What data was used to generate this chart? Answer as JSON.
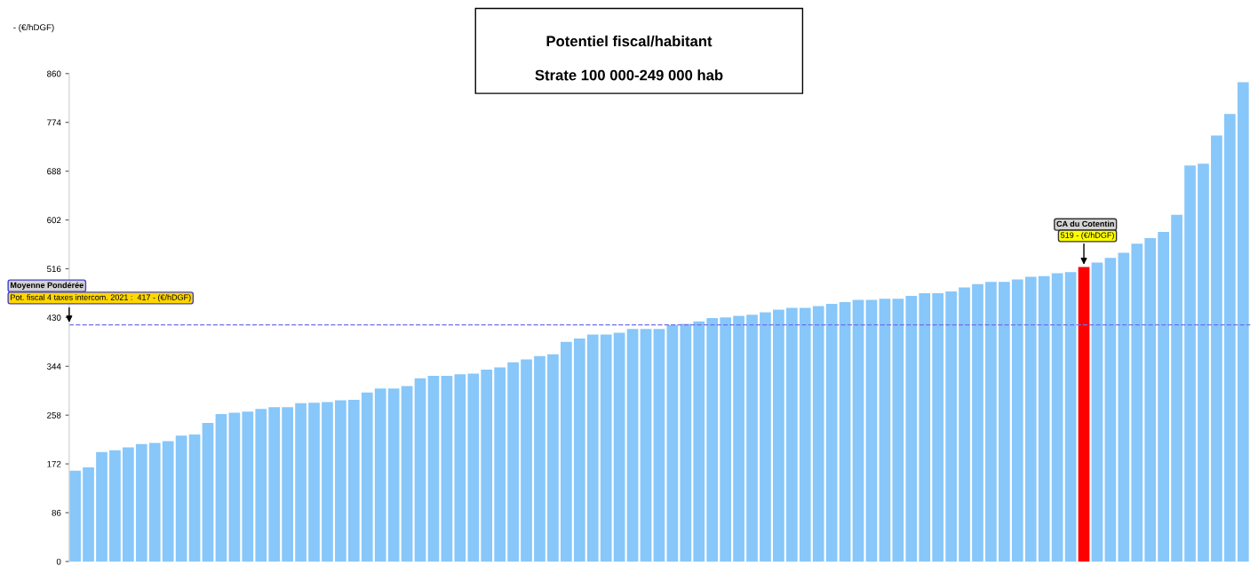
{
  "chart_data": {
    "type": "bar",
    "title": "Potentiel fiscal/habitant",
    "subtitle": "Strate 100 000-249 000 hab",
    "ylabel": "- (€/hDGF)",
    "categories": [
      null,
      null,
      null,
      null,
      null,
      null,
      null,
      null,
      null,
      null,
      null,
      null,
      null,
      null,
      null,
      null,
      null,
      null,
      null,
      null,
      null,
      null,
      null,
      null,
      null,
      null,
      null,
      null,
      null,
      null,
      null,
      null,
      null,
      null,
      null,
      null,
      null,
      null,
      null,
      null,
      null,
      null,
      null,
      null,
      null,
      null,
      null,
      null,
      null,
      null,
      null,
      null,
      null,
      null,
      null,
      null,
      null,
      null,
      null,
      null,
      null,
      null,
      null,
      null,
      null,
      null,
      null,
      null,
      null,
      null,
      null,
      null,
      null,
      null,
      null,
      null,
      null,
      null,
      null,
      null,
      null,
      null,
      null,
      null,
      null,
      null,
      null,
      null,
      null
    ],
    "values": [
      160,
      166,
      193,
      196,
      201,
      207,
      209,
      212,
      222,
      224,
      244,
      260,
      262,
      264,
      269,
      272,
      272,
      279,
      280,
      281,
      284,
      285,
      298,
      305,
      305,
      309,
      323,
      327,
      327,
      330,
      331,
      338,
      342,
      351,
      356,
      362,
      365,
      387,
      393,
      400,
      400,
      403,
      410,
      410,
      410,
      417,
      419,
      423,
      429,
      430,
      433,
      435,
      439,
      444,
      447,
      447,
      450,
      454,
      457,
      461,
      461,
      463,
      463,
      468,
      473,
      473,
      476,
      483,
      489,
      493,
      493,
      497,
      502,
      503,
      508,
      510,
      519,
      527,
      535,
      544,
      560,
      570,
      581,
      611,
      698,
      701,
      751,
      789,
      845
    ],
    "colors": [
      "#87c7fa",
      "#87c7fa",
      "#87c7fa",
      "#87c7fa",
      "#87c7fa",
      "#87c7fa",
      "#87c7fa",
      "#87c7fa",
      "#87c7fa",
      "#87c7fa",
      "#87c7fa",
      "#87c7fa",
      "#87c7fa",
      "#87c7fa",
      "#87c7fa",
      "#87c7fa",
      "#87c7fa",
      "#87c7fa",
      "#87c7fa",
      "#87c7fa",
      "#87c7fa",
      "#87c7fa",
      "#87c7fa",
      "#87c7fa",
      "#87c7fa",
      "#87c7fa",
      "#87c7fa",
      "#87c7fa",
      "#87c7fa",
      "#87c7fa",
      "#87c7fa",
      "#87c7fa",
      "#87c7fa",
      "#87c7fa",
      "#87c7fa",
      "#87c7fa",
      "#87c7fa",
      "#87c7fa",
      "#87c7fa",
      "#87c7fa",
      "#87c7fa",
      "#87c7fa",
      "#87c7fa",
      "#87c7fa",
      "#87c7fa",
      "#87c7fa",
      "#87c7fa",
      "#87c7fa",
      "#87c7fa",
      "#87c7fa",
      "#87c7fa",
      "#87c7fa",
      "#87c7fa",
      "#87c7fa",
      "#87c7fa",
      "#87c7fa",
      "#87c7fa",
      "#87c7fa",
      "#87c7fa",
      "#87c7fa",
      "#87c7fa",
      "#87c7fa",
      "#87c7fa",
      "#87c7fa",
      "#87c7fa",
      "#87c7fa",
      "#87c7fa",
      "#87c7fa",
      "#87c7fa",
      "#87c7fa",
      "#87c7fa",
      "#87c7fa",
      "#87c7fa",
      "#87c7fa",
      "#87c7fa",
      "#87c7fa",
      "#ff0000",
      "#87c7fa",
      "#87c7fa",
      "#87c7fa",
      "#87c7fa",
      "#87c7fa",
      "#87c7fa",
      "#87c7fa",
      "#87c7fa",
      "#87c7fa",
      "#87c7fa",
      "#87c7fa",
      "#87c7fa"
    ],
    "value_labels": [
      null,
      null,
      null,
      null,
      null,
      null,
      null,
      null,
      null,
      null,
      null,
      null,
      null,
      null,
      null,
      null,
      null,
      null,
      null,
      null,
      null,
      null,
      null,
      null,
      null,
      null,
      null,
      null,
      null,
      null,
      null,
      null,
      null,
      null,
      null,
      null,
      null,
      null,
      null,
      null,
      null,
      null,
      null,
      null,
      null,
      null,
      null,
      null,
      null,
      null,
      null,
      null,
      null,
      null,
      null,
      null,
      null,
      null,
      null,
      null,
      null,
      null,
      null,
      null,
      null,
      null,
      null,
      null,
      null,
      null,
      null,
      null,
      null,
      null,
      null,
      null,
      "CA du Cotentin\n519 - (€/hDGF)",
      null,
      null,
      null,
      null,
      null,
      null,
      null,
      null,
      null,
      null,
      null,
      null
    ],
    "ylim": [
      0,
      860
    ],
    "yticks": [
      0,
      86,
      172,
      258,
      344,
      430,
      516,
      602,
      688,
      774,
      860
    ],
    "ref_lines": [
      {
        "axis": "y",
        "value": 417,
        "label": "Moyenne Pondérée\nPot. fiscal 4 taxes intercom. 2021 :  417 - (€/hDGF)",
        "color": "#6f6fe8",
        "line_style": "dashed"
      }
    ],
    "grid": false,
    "legend": false
  }
}
